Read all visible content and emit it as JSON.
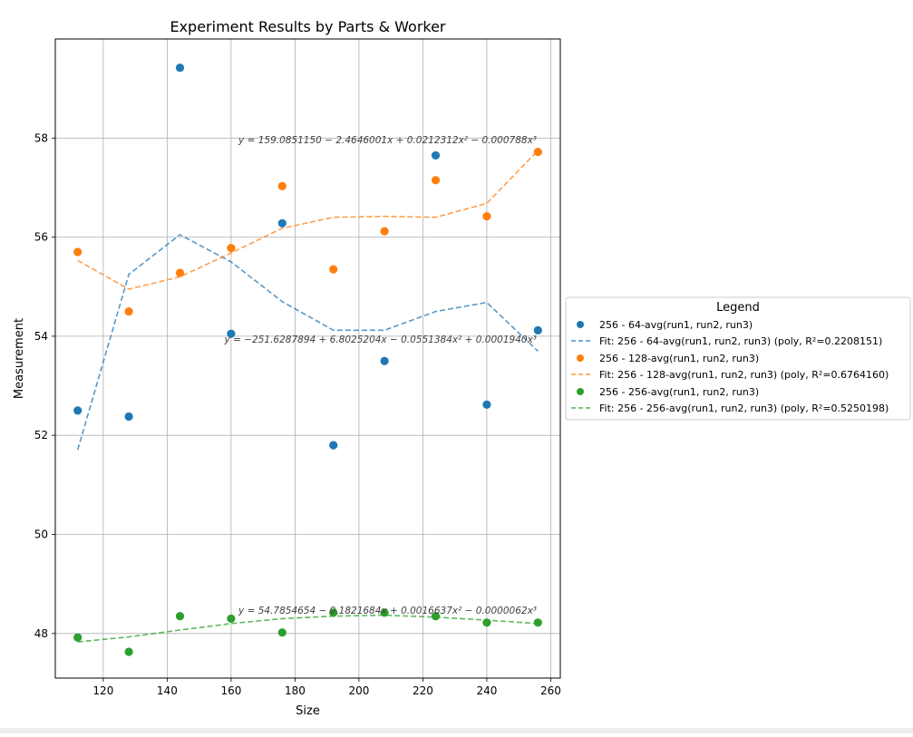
{
  "chart_data": {
    "type": "scatter",
    "title": "Experiment Results by Parts & Worker",
    "xlabel": "Size",
    "ylabel": "Measurement",
    "xlim": [
      105,
      263
    ],
    "ylim": [
      47.1,
      60
    ],
    "xticks": [
      120,
      140,
      160,
      180,
      200,
      220,
      240,
      260
    ],
    "yticks": [
      48,
      50,
      52,
      54,
      56,
      58
    ],
    "grid": true,
    "legend": {
      "title": "Legend",
      "placement": "outside-right"
    },
    "x": [
      112,
      128,
      144,
      160,
      176,
      192,
      208,
      224,
      240,
      256
    ],
    "series": [
      {
        "name": "256 - 64-avg(run1, run2, run3)",
        "color": "#1f77b4",
        "values": [
          52.5,
          52.38,
          59.42,
          54.05,
          56.28,
          51.8,
          53.5,
          57.65,
          52.62,
          54.12
        ],
        "fit_name": "Fit: 256 - 64-avg(run1, run2, run3) (poly, R²=0.2208151)",
        "fit_values": [
          51.71,
          55.25,
          56.05,
          55.5,
          54.7,
          54.12,
          54.12,
          54.5,
          54.68,
          53.7
        ],
        "equation": "y = −251.6287894 + 6.8025204x − 0.0551384x² + 0.0001940x³"
      },
      {
        "name": "256 - 128-avg(run1, run2, run3)",
        "color": "#ff7f0e",
        "values": [
          55.7,
          54.5,
          55.28,
          55.78,
          57.03,
          55.35,
          56.12,
          57.15,
          56.42,
          57.72
        ],
        "fit_name": "Fit: 256 - 128-avg(run1, run2, run3) (poly, R²=0.6764160)",
        "fit_values": [
          55.53,
          54.95,
          55.2,
          55.68,
          56.18,
          56.4,
          56.42,
          56.4,
          56.68,
          57.75
        ],
        "equation": "y = 159.0851150 − 2.4646001x + 0.0212312x² − 0.000788x³"
      },
      {
        "name": "256 - 256-avg(run1, run2, run3)",
        "color": "#2ca02c",
        "values": [
          47.92,
          47.63,
          48.35,
          48.3,
          48.02,
          48.42,
          48.42,
          48.35,
          48.22,
          48.22
        ],
        "fit_name": "Fit: 256 - 256-avg(run1, run2, run3) (poly, R²=0.5250198)",
        "fit_values": [
          47.83,
          47.93,
          48.07,
          48.2,
          48.3,
          48.35,
          48.37,
          48.33,
          48.27,
          48.2
        ],
        "equation": "y = 54.7854654 − 0.1821684x + 0.0016637x² − 0.0000062x³"
      }
    ]
  }
}
